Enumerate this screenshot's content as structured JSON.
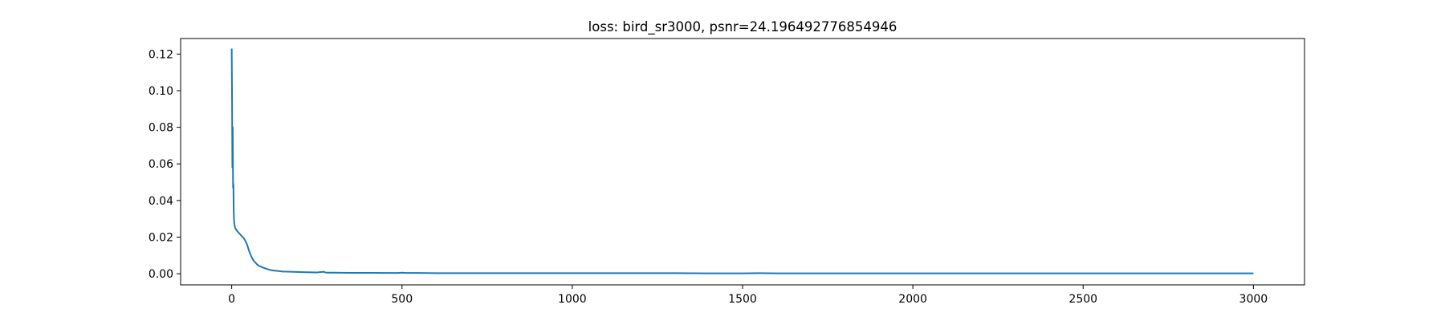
{
  "chart_data": {
    "type": "line",
    "title": "loss: bird_sr3000, psnr=24.196492776854946",
    "xlabel": "",
    "ylabel": "",
    "xlim": [
      -150,
      3150
    ],
    "ylim": [
      -0.0061,
      0.1285
    ],
    "xticks": [
      0,
      500,
      1000,
      1500,
      2000,
      2500,
      3000
    ],
    "xtick_labels": [
      "0",
      "500",
      "1000",
      "1500",
      "2000",
      "2500",
      "3000"
    ],
    "yticks": [
      0.0,
      0.02,
      0.04,
      0.06,
      0.08,
      0.1,
      0.12
    ],
    "ytick_labels": [
      "0.00",
      "0.02",
      "0.04",
      "0.06",
      "0.08",
      "0.10",
      "0.12"
    ],
    "grid": false,
    "legend": "none",
    "series": [
      {
        "color": "#1f77b4",
        "x": [
          0,
          1,
          2,
          3,
          4,
          5,
          6,
          7,
          8,
          10,
          12,
          15,
          20,
          25,
          30,
          35,
          40,
          45,
          50,
          55,
          60,
          65,
          70,
          75,
          80,
          90,
          100,
          110,
          120,
          135,
          150,
          175,
          200,
          225,
          250,
          270,
          275,
          280,
          300,
          350,
          400,
          450,
          490,
          500,
          510,
          550,
          600,
          700,
          800,
          900,
          1000,
          1100,
          1200,
          1300,
          1400,
          1500,
          1550,
          1600,
          1800,
          2000,
          2200,
          2400,
          2600,
          2800,
          3000
        ],
        "y": [
          0.123,
          0.096,
          0.058,
          0.08,
          0.047,
          0.049,
          0.033,
          0.029,
          0.027,
          0.025,
          0.0245,
          0.0235,
          0.0225,
          0.0215,
          0.0205,
          0.0195,
          0.018,
          0.016,
          0.013,
          0.0105,
          0.0085,
          0.007,
          0.006,
          0.005,
          0.0043,
          0.0035,
          0.0028,
          0.0022,
          0.0018,
          0.0015,
          0.0012,
          0.0011,
          0.0009,
          0.0008,
          0.0007,
          0.0011,
          0.0007,
          0.0006,
          0.0006,
          0.0005,
          0.0005,
          0.0004,
          0.0004,
          0.0006,
          0.0004,
          0.0004,
          0.0003,
          0.0003,
          0.0003,
          0.0003,
          0.0003,
          0.0003,
          0.0003,
          0.0003,
          0.0002,
          0.0002,
          0.0003,
          0.0002,
          0.0002,
          0.0002,
          0.0002,
          0.0002,
          0.0002,
          0.0002,
          0.0002
        ]
      }
    ]
  }
}
